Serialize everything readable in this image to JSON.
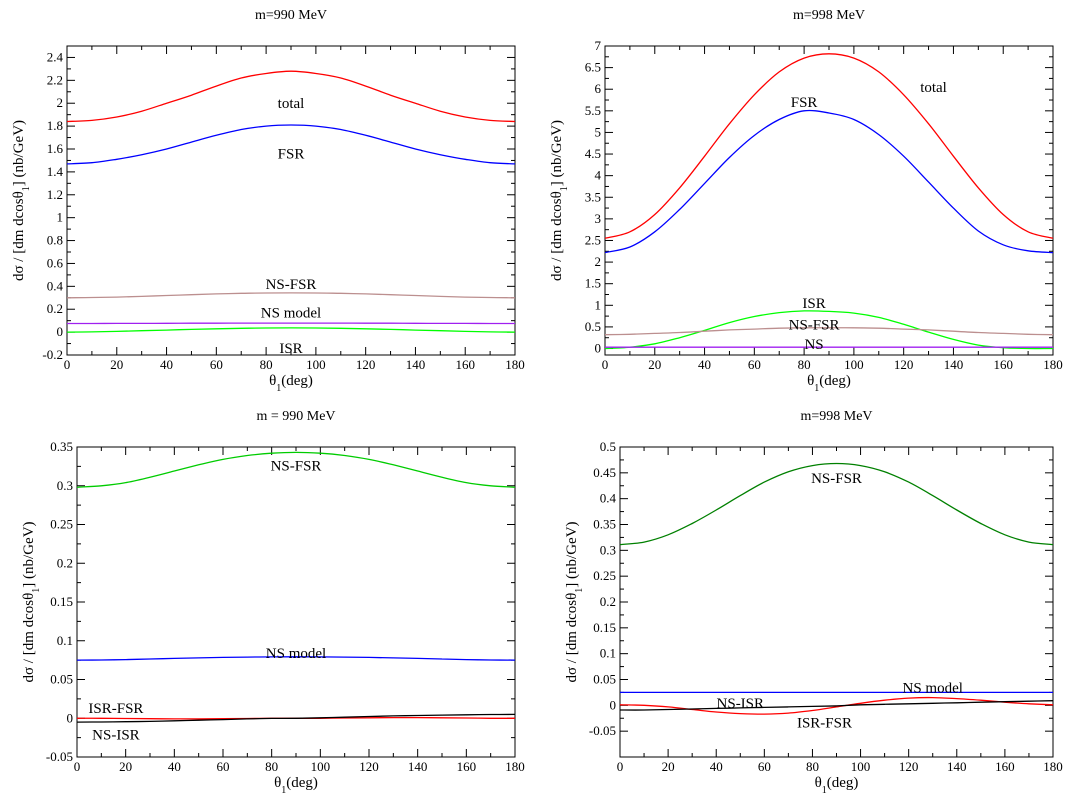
{
  "chart_data": [
    {
      "type": "line",
      "title": "m=990 MeV",
      "xlabel": "θ1(deg)",
      "ylabel": "dσ / [dm dcosθ1]  (nb/GeV)",
      "xlim": [
        0,
        180
      ],
      "ylim": [
        -0.2,
        2.5
      ],
      "xticks": [
        0,
        20,
        40,
        60,
        80,
        100,
        120,
        140,
        160,
        180
      ],
      "yticks": [
        -0.2,
        0,
        0.2,
        0.4,
        0.6,
        0.8,
        1,
        1.2,
        1.4,
        1.6,
        1.8,
        2,
        2.2,
        2.4
      ],
      "ytick_labels": [
        "-0.2",
        "0",
        "0.2",
        "0.4",
        "0.6",
        "0.8",
        "1",
        "1.2",
        "1.4",
        "1.6",
        "1.8",
        "2",
        "2.2",
        "2.4"
      ],
      "grid": false,
      "x": [
        0,
        10,
        20,
        30,
        40,
        50,
        60,
        70,
        80,
        90,
        100,
        110,
        120,
        130,
        140,
        150,
        160,
        170,
        180
      ],
      "series": [
        {
          "key": "total",
          "color": "#ff0000",
          "values": [
            1.84,
            1.85,
            1.88,
            1.93,
            2.0,
            2.07,
            2.15,
            2.22,
            2.26,
            2.28,
            2.26,
            2.22,
            2.15,
            2.07,
            2.0,
            1.93,
            1.88,
            1.85,
            1.84
          ]
        },
        {
          "key": "FSR",
          "color": "#0000ff",
          "values": [
            1.47,
            1.48,
            1.51,
            1.55,
            1.6,
            1.66,
            1.72,
            1.77,
            1.8,
            1.81,
            1.8,
            1.77,
            1.72,
            1.66,
            1.6,
            1.55,
            1.51,
            1.48,
            1.47
          ]
        },
        {
          "key": "NS-FSR",
          "color": "#bc8f8f",
          "values": [
            0.3,
            0.302,
            0.306,
            0.312,
            0.32,
            0.327,
            0.334,
            0.339,
            0.342,
            0.343,
            0.342,
            0.339,
            0.334,
            0.327,
            0.32,
            0.312,
            0.306,
            0.302,
            0.3
          ]
        },
        {
          "key": "NS model",
          "color": "#a020f0",
          "values": [
            0.075,
            0.075,
            0.076,
            0.076,
            0.077,
            0.078,
            0.078,
            0.079,
            0.079,
            0.079,
            0.079,
            0.079,
            0.078,
            0.078,
            0.077,
            0.076,
            0.076,
            0.075,
            0.075
          ]
        },
        {
          "key": "ISR",
          "color": "#00ff00",
          "values": [
            0.0,
            0.002,
            0.006,
            0.012,
            0.018,
            0.024,
            0.029,
            0.033,
            0.036,
            0.037,
            0.036,
            0.033,
            0.029,
            0.024,
            0.018,
            0.012,
            0.006,
            0.002,
            0.0
          ]
        }
      ],
      "annotations": [
        {
          "text": "total",
          "x": 90,
          "y": 2.0
        },
        {
          "text": "FSR",
          "x": 90,
          "y": 1.56
        },
        {
          "text": "NS-FSR",
          "x": 90,
          "y": 0.42
        },
        {
          "text": "NS model",
          "x": 90,
          "y": 0.17
        },
        {
          "text": "ISR",
          "x": 90,
          "y": -0.14
        }
      ]
    },
    {
      "type": "line",
      "title": "m=998 MeV",
      "xlabel": "θ1(deg)",
      "ylabel": "dσ / [dm dcosθ1]  (nb/GeV)",
      "xlim": [
        0,
        180
      ],
      "ylim": [
        -0.15,
        7
      ],
      "xticks": [
        0,
        20,
        40,
        60,
        80,
        100,
        120,
        140,
        160,
        180
      ],
      "yticks": [
        0,
        0.5,
        1,
        1.5,
        2,
        2.5,
        3,
        3.5,
        4,
        4.5,
        5,
        5.5,
        6,
        6.5,
        7
      ],
      "ytick_labels": [
        "0",
        "0.5",
        "1",
        "1.5",
        "2",
        "2.5",
        "3",
        "3.5",
        "4",
        "4.5",
        "5",
        "5.5",
        "6",
        "6.5",
        "7"
      ],
      "grid": false,
      "x": [
        0,
        10,
        20,
        30,
        40,
        50,
        60,
        70,
        80,
        90,
        100,
        110,
        120,
        130,
        140,
        150,
        160,
        170,
        180
      ],
      "series": [
        {
          "key": "total",
          "color": "#ff0000",
          "values": [
            2.55,
            2.7,
            3.1,
            3.72,
            4.45,
            5.2,
            5.87,
            6.4,
            6.72,
            6.82,
            6.72,
            6.4,
            5.87,
            5.2,
            4.45,
            3.72,
            3.1,
            2.7,
            2.55
          ]
        },
        {
          "key": "FSR",
          "color": "#0000ff",
          "values": [
            2.22,
            2.35,
            2.7,
            3.22,
            3.82,
            4.42,
            4.93,
            5.3,
            5.5,
            5.45,
            5.3,
            4.95,
            4.45,
            3.85,
            3.25,
            2.72,
            2.4,
            2.26,
            2.22
          ]
        },
        {
          "key": "ISR",
          "color": "#00ff00",
          "values": [
            0.0,
            0.03,
            0.11,
            0.25,
            0.42,
            0.6,
            0.74,
            0.83,
            0.87,
            0.86,
            0.82,
            0.72,
            0.56,
            0.38,
            0.21,
            0.08,
            0.02,
            0.0,
            0.0
          ]
        },
        {
          "key": "NS-FSR",
          "color": "#bc8f8f",
          "values": [
            0.32,
            0.33,
            0.35,
            0.37,
            0.4,
            0.43,
            0.45,
            0.47,
            0.48,
            0.48,
            0.48,
            0.47,
            0.45,
            0.43,
            0.4,
            0.37,
            0.35,
            0.33,
            0.32
          ]
        },
        {
          "key": "NS",
          "color": "#a020f0",
          "values": [
            0.03,
            0.03,
            0.03,
            0.03,
            0.03,
            0.03,
            0.03,
            0.03,
            0.03,
            0.03,
            0.03,
            0.03,
            0.03,
            0.03,
            0.03,
            0.03,
            0.03,
            0.03,
            0.03
          ]
        }
      ],
      "annotations": [
        {
          "text": "FSR",
          "x": 80,
          "y": 5.7
        },
        {
          "text": "total",
          "x": 132,
          "y": 6.05
        },
        {
          "text": "ISR",
          "x": 84,
          "y": 1.05
        },
        {
          "text": "NS-FSR",
          "x": 84,
          "y": 0.55
        },
        {
          "text": "NS",
          "x": 84,
          "y": 0.1
        }
      ]
    },
    {
      "type": "line",
      "title": "m = 990 MeV",
      "xlabel": "θ1(deg)",
      "ylabel": "dσ / [dm dcosθ1]  (nb/GeV)",
      "xlim": [
        0,
        180
      ],
      "ylim": [
        -0.05,
        0.35
      ],
      "xticks": [
        0,
        20,
        40,
        60,
        80,
        100,
        120,
        140,
        160,
        180
      ],
      "yticks": [
        -0.05,
        0,
        0.05,
        0.1,
        0.15,
        0.2,
        0.25,
        0.3,
        0.35
      ],
      "ytick_labels": [
        "-0.05",
        "0",
        "0.05",
        "0.1",
        "0.15",
        "0.2",
        "0.25",
        "0.3",
        "0.35"
      ],
      "grid": false,
      "x": [
        0,
        10,
        20,
        30,
        40,
        50,
        60,
        70,
        80,
        90,
        100,
        110,
        120,
        130,
        140,
        150,
        160,
        170,
        180
      ],
      "series": [
        {
          "key": "NS-FSR",
          "color": "#00cc00",
          "values": [
            0.298,
            0.3,
            0.304,
            0.311,
            0.319,
            0.327,
            0.334,
            0.339,
            0.342,
            0.343,
            0.342,
            0.339,
            0.334,
            0.327,
            0.319,
            0.311,
            0.304,
            0.3,
            0.298
          ]
        },
        {
          "key": "NS model",
          "color": "#0000ff",
          "values": [
            0.075,
            0.0752,
            0.0757,
            0.0764,
            0.0772,
            0.0779,
            0.0785,
            0.0789,
            0.0792,
            0.0793,
            0.0792,
            0.0789,
            0.0785,
            0.0779,
            0.0772,
            0.0764,
            0.0757,
            0.0752,
            0.075
          ]
        },
        {
          "key": "ISR-FSR",
          "color": "#ff0000",
          "values": [
            0.0,
            0.0,
            -0.0003,
            -0.0006,
            -0.0008,
            -0.0008,
            -0.0006,
            -0.0003,
            0.0,
            0.0,
            0.0,
            0.0003,
            0.0006,
            0.0008,
            0.0008,
            0.0006,
            0.0003,
            0.0,
            0.0
          ]
        },
        {
          "key": "NS-ISR",
          "color": "#000000",
          "values": [
            -0.005,
            -0.0048,
            -0.0045,
            -0.004,
            -0.0033,
            -0.0025,
            -0.0017,
            -0.0008,
            -0.0002,
            0.0,
            0.0006,
            0.0014,
            0.0022,
            0.003,
            0.0036,
            0.0041,
            0.0045,
            0.0048,
            0.005
          ]
        }
      ],
      "annotations": [
        {
          "text": "NS-FSR",
          "x": 90,
          "y": 0.326
        },
        {
          "text": "NS model",
          "x": 90,
          "y": 0.084
        },
        {
          "text": "ISR-FSR",
          "x": 16,
          "y": 0.013
        },
        {
          "text": "NS-ISR",
          "x": 16,
          "y": -0.021
        }
      ]
    },
    {
      "type": "line",
      "title": "m=998 MeV",
      "xlabel": "θ1(deg)",
      "ylabel": "dσ / [dm dcosθ1]  (nb/GeV)",
      "xlim": [
        0,
        180
      ],
      "ylim": [
        -0.1,
        0.5
      ],
      "xticks": [
        0,
        20,
        40,
        60,
        80,
        100,
        120,
        140,
        160,
        180
      ],
      "yticks": [
        -0.05,
        0,
        0.05,
        0.1,
        0.15,
        0.2,
        0.25,
        0.3,
        0.35,
        0.4,
        0.45,
        0.5
      ],
      "ytick_labels": [
        "-0.05",
        "0",
        "0.05",
        "0.1",
        "0.15",
        "0.2",
        "0.25",
        "0.3",
        "0.35",
        "0.4",
        "0.45",
        "0.5"
      ],
      "grid": false,
      "x": [
        0,
        10,
        20,
        30,
        40,
        50,
        60,
        70,
        80,
        90,
        100,
        110,
        120,
        130,
        140,
        150,
        160,
        170,
        180
      ],
      "series": [
        {
          "key": "NS-FSR",
          "color": "#008000",
          "values": [
            0.311,
            0.316,
            0.33,
            0.352,
            0.378,
            0.406,
            0.432,
            0.452,
            0.464,
            0.468,
            0.464,
            0.452,
            0.432,
            0.406,
            0.378,
            0.352,
            0.33,
            0.316,
            0.311
          ]
        },
        {
          "key": "NS model",
          "color": "#0000ff",
          "values": [
            0.025,
            0.025,
            0.025,
            0.025,
            0.025,
            0.025,
            0.025,
            0.025,
            0.025,
            0.025,
            0.025,
            0.025,
            0.025,
            0.025,
            0.025,
            0.025,
            0.025,
            0.025,
            0.025
          ]
        },
        {
          "key": "ISR-FSR",
          "color": "#ff0000",
          "values": [
            0.001,
            0.0,
            -0.003,
            -0.008,
            -0.013,
            -0.016,
            -0.017,
            -0.015,
            -0.01,
            -0.003,
            0.004,
            0.01,
            0.014,
            0.015,
            0.013,
            0.01,
            0.006,
            0.003,
            0.001
          ]
        },
        {
          "key": "NS-ISR",
          "color": "#000000",
          "values": [
            -0.009,
            -0.009,
            -0.008,
            -0.007,
            -0.006,
            -0.005,
            -0.004,
            -0.003,
            -0.002,
            -0.001,
            0.001,
            0.002,
            0.003,
            0.004,
            0.005,
            0.006,
            0.007,
            0.008,
            0.009
          ]
        }
      ],
      "annotations": [
        {
          "text": "NS-FSR",
          "x": 90,
          "y": 0.44
        },
        {
          "text": "NS model",
          "x": 130,
          "y": 0.035
        },
        {
          "text": "NS-ISR",
          "x": 50,
          "y": 0.005
        },
        {
          "text": "ISR-FSR",
          "x": 85,
          "y": -0.033
        }
      ]
    }
  ]
}
